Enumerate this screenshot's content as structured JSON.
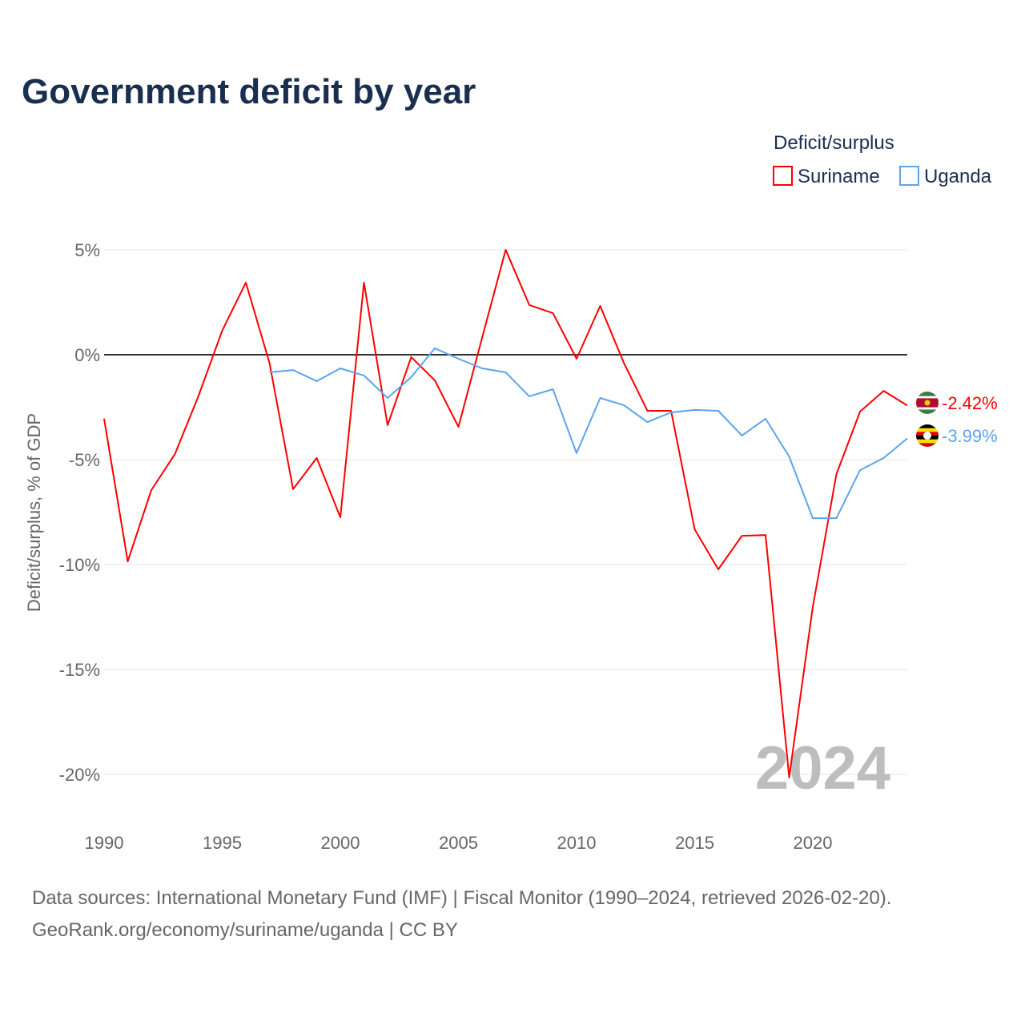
{
  "chart_data": {
    "type": "line",
    "title": "Government deficit by year",
    "xlabel": "",
    "ylabel": "Deficit/surplus, % of GDP",
    "xlim": [
      1990,
      2024
    ],
    "ylim": [
      -20,
      5
    ],
    "yticks": [
      5,
      0,
      -5,
      -10,
      -15,
      -20
    ],
    "ytick_labels": [
      "5%",
      "0%",
      "-5%",
      "-10%",
      "-15%",
      "-20%"
    ],
    "xticks": [
      1990,
      1995,
      2000,
      2005,
      2010,
      2015,
      2020
    ],
    "xtick_labels": [
      "1990",
      "1995",
      "2000",
      "2005",
      "2010",
      "2015",
      "2020"
    ],
    "grid": true,
    "legend_title": "Deficit/surplus",
    "legend_position": "top-right",
    "watermark_year": "2024",
    "series": [
      {
        "name": "Suriname",
        "color": "#ff0000",
        "end_label": "-2.42%",
        "flag": "suriname-flag",
        "x": [
          1990,
          1991,
          1992,
          1993,
          1994,
          1995,
          1996,
          1997,
          1998,
          1999,
          2000,
          2001,
          2002,
          2003,
          2004,
          2005,
          2006,
          2007,
          2008,
          2009,
          2010,
          2011,
          2012,
          2013,
          2014,
          2015,
          2016,
          2017,
          2018,
          2019,
          2020,
          2021,
          2022,
          2023,
          2024
        ],
        "values": [
          -3.05,
          -9.85,
          -6.45,
          -4.73,
          -1.95,
          1.15,
          3.44,
          -0.38,
          -6.41,
          -4.92,
          -7.75,
          3.44,
          -3.36,
          -0.11,
          -1.22,
          -3.44,
          0.8,
          5.0,
          2.37,
          1.98,
          -0.19,
          2.33,
          -0.38,
          -2.67,
          -2.67,
          -8.32,
          -10.23,
          -8.63,
          -8.59,
          -20.15,
          -12.02,
          -5.69,
          -2.71,
          -1.72,
          -2.42
        ]
      },
      {
        "name": "Uganda",
        "color": "#5ba4ee",
        "end_label": "-3.99%",
        "flag": "uganda-flag",
        "x": [
          1997,
          1998,
          1999,
          2000,
          2001,
          2002,
          2003,
          2004,
          2005,
          2006,
          2007,
          2008,
          2009,
          2010,
          2011,
          2012,
          2013,
          2014,
          2015,
          2016,
          2017,
          2018,
          2019,
          2020,
          2021,
          2022,
          2023,
          2024
        ],
        "values": [
          -0.84,
          -0.73,
          -1.26,
          -0.65,
          -0.99,
          -2.06,
          -1.07,
          0.31,
          -0.19,
          -0.65,
          -0.84,
          -1.98,
          -1.64,
          -4.69,
          -2.06,
          -2.4,
          -3.21,
          -2.75,
          -2.63,
          -2.67,
          -3.85,
          -3.05,
          -4.85,
          -7.79,
          -7.79,
          -5.5,
          -4.92,
          -3.99
        ]
      }
    ]
  },
  "footer": {
    "sources": "Data sources: International Monetary Fund (IMF) | Fiscal Monitor (1990–2024, retrieved 2026-02-20).",
    "attribution": "GeoRank.org/economy/suriname/uganda | CC BY"
  }
}
